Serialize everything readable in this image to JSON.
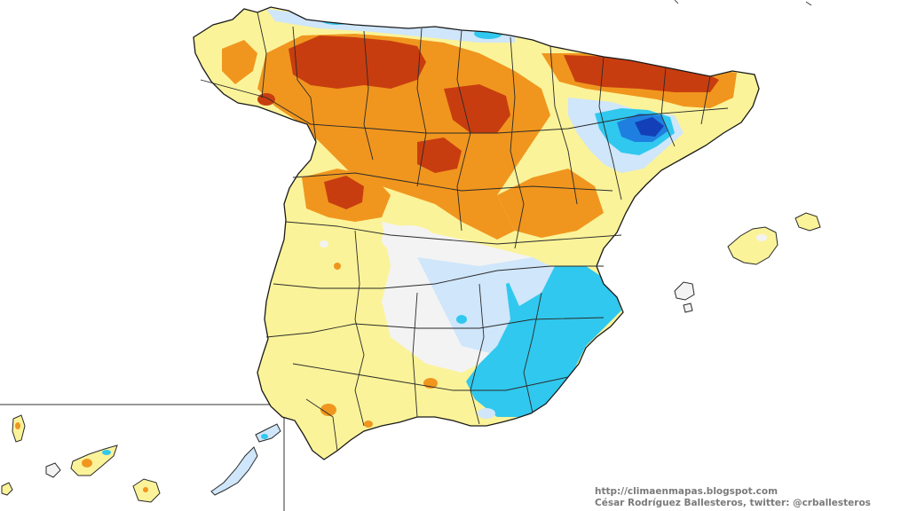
{
  "map": {
    "subject": "Iberian Peninsula precipitation anomaly map",
    "regions": [
      "Spain mainland",
      "Balearic Islands",
      "Canary Islands inset"
    ],
    "palette": {
      "dark_red": "#c83d10",
      "orange": "#f0961e",
      "yellow": "#fbf399",
      "pale": "#f3f3f3",
      "light_blue": "#cfe6fb",
      "cyan": "#30c8ee",
      "blue": "#1f7fe0",
      "dark_blue": "#1340b8",
      "border": "#2a2a2a"
    }
  },
  "credits": {
    "url": "http://climaenmapas.blogspot.com",
    "author": "César Rodríguez Ballesteros, twitter: @crballesteros"
  }
}
